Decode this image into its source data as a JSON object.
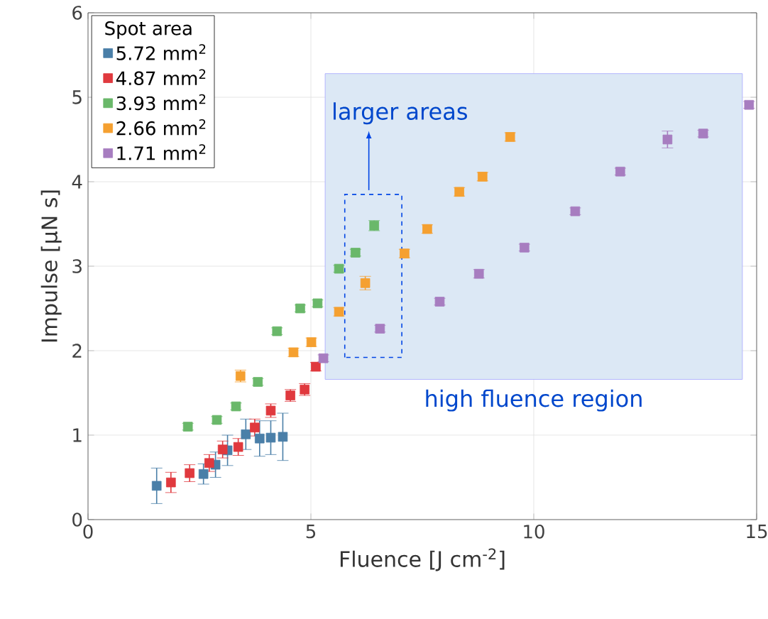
{
  "chart_data": {
    "type": "scatter",
    "xlabel": "Fluence [J cm$^{-2}$]",
    "ylabel": "Impulse [μN s]",
    "legend_title": "Spot area",
    "legend": "top left",
    "grid": true,
    "marker": "square",
    "xlim": [
      0,
      15
    ],
    "ylim": [
      0,
      6
    ],
    "xticks": [
      0,
      5,
      10,
      15
    ],
    "yticks": [
      0,
      1,
      2,
      3,
      4,
      5,
      6
    ],
    "series": [
      {
        "name": "5.72 mm$^{2}$",
        "color": "#4a7fa8",
        "x": [
          1.54,
          2.59,
          2.86,
          3.13,
          3.54,
          3.85,
          4.1,
          4.37
        ],
        "values": [
          0.4,
          0.54,
          0.65,
          0.82,
          1.01,
          0.96,
          0.97,
          0.98
        ],
        "errors": [
          0.21,
          0.12,
          0.15,
          0.18,
          0.18,
          0.21,
          0.2,
          0.28
        ]
      },
      {
        "name": "4.87 mm$^{2}$",
        "color": "#e0393e",
        "x": [
          1.86,
          2.28,
          2.72,
          3.02,
          3.37,
          3.74,
          4.1,
          4.54,
          4.86,
          5.11
        ],
        "values": [
          0.44,
          0.55,
          0.67,
          0.83,
          0.86,
          1.09,
          1.29,
          1.47,
          1.54,
          1.81
        ],
        "errors": [
          0.12,
          0.1,
          0.1,
          0.1,
          0.1,
          0.1,
          0.08,
          0.07,
          0.07,
          0.05
        ]
      },
      {
        "name": "3.93 mm$^{2}$",
        "color": "#6ab86a",
        "x": [
          2.24,
          2.89,
          3.32,
          3.81,
          4.24,
          4.76,
          5.15,
          5.63,
          6.0,
          6.42
        ],
        "values": [
          1.1,
          1.18,
          1.34,
          1.63,
          2.23,
          2.5,
          2.56,
          2.97,
          3.16,
          3.48
        ],
        "errors": [
          0.04,
          0.04,
          0.04,
          0.04,
          0.04,
          0.04,
          0.04,
          0.04,
          0.04,
          0.06
        ]
      },
      {
        "name": "2.66 mm$^{2}$",
        "color": "#f5a030",
        "x": [
          3.42,
          4.61,
          5.01,
          5.63,
          6.22,
          7.1,
          7.61,
          8.33,
          8.85,
          9.47
        ],
        "values": [
          1.7,
          1.98,
          2.1,
          2.46,
          2.8,
          3.15,
          3.44,
          3.88,
          4.06,
          4.53
        ],
        "errors": [
          0.07,
          0.05,
          0.05,
          0.05,
          0.08,
          0.05,
          0.05,
          0.05,
          0.05,
          0.05
        ]
      },
      {
        "name": "1.71 mm$^{2}$",
        "color": "#a77dc0",
        "x": [
          5.28,
          6.55,
          7.89,
          8.77,
          9.79,
          10.93,
          11.94,
          13.0,
          13.8,
          14.83
        ],
        "values": [
          1.91,
          2.26,
          2.58,
          2.91,
          3.22,
          3.65,
          4.12,
          4.5,
          4.57,
          4.91
        ],
        "errors": [
          0.04,
          0.04,
          0.04,
          0.05,
          0.04,
          0.04,
          0.04,
          0.1,
          0.04,
          0.04
        ]
      }
    ],
    "bands": [
      {
        "axis": "x",
        "from": 5.32,
        "to": 14.68,
        "label": "high fluence region",
        "color": "#dce8f5"
      }
    ],
    "annotations": [
      "larger areas"
    ]
  }
}
